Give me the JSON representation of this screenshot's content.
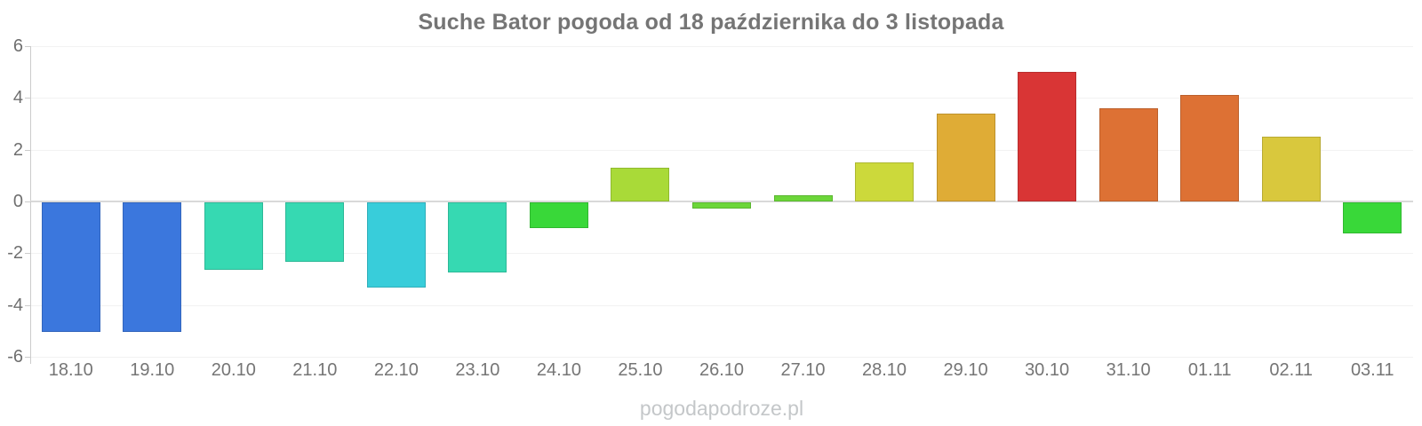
{
  "title": "Suche Bator pogoda od 18 października do 3 listopada",
  "watermark": "pogodapodroze.pl",
  "chart_data": {
    "type": "bar",
    "title": "Suche Bator pogoda od 18 października do 3 listopada",
    "categories": [
      "18.10",
      "19.10",
      "20.10",
      "21.10",
      "22.10",
      "23.10",
      "24.10",
      "25.10",
      "26.10",
      "27.10",
      "28.10",
      "29.10",
      "30.10",
      "31.10",
      "01.11",
      "02.11",
      "03.11"
    ],
    "values": [
      -5.0,
      -5.0,
      -2.6,
      -2.3,
      -3.3,
      -2.7,
      -1.0,
      1.3,
      -0.25,
      0.25,
      1.5,
      3.4,
      5.0,
      3.6,
      4.1,
      2.5,
      -1.2
    ],
    "bar_colors": [
      "#3b77dd",
      "#3b77dd",
      "#36d9b2",
      "#36d9b2",
      "#38cdda",
      "#36d9b2",
      "#39d839",
      "#a9da38",
      "#6cd639",
      "#6cd639",
      "#ccd93b",
      "#dfac36",
      "#d93535",
      "#dd7134",
      "#dd7134",
      "#d9c83d",
      "#39d839"
    ],
    "xlabel": "",
    "ylabel": "",
    "ylim": [
      -6,
      6
    ],
    "yticks": [
      6,
      4,
      2,
      0,
      -2,
      -4,
      -6
    ],
    "grid": true,
    "legend": "none"
  },
  "colors": {
    "background": "#ffffff",
    "title_text": "#757575",
    "axis_label_text": "#757575",
    "zero_line": "#d9d9d9",
    "grid_line": "#f2f2f2",
    "axis_line": "#cccccc",
    "watermark_text": "#c4c7c9"
  }
}
